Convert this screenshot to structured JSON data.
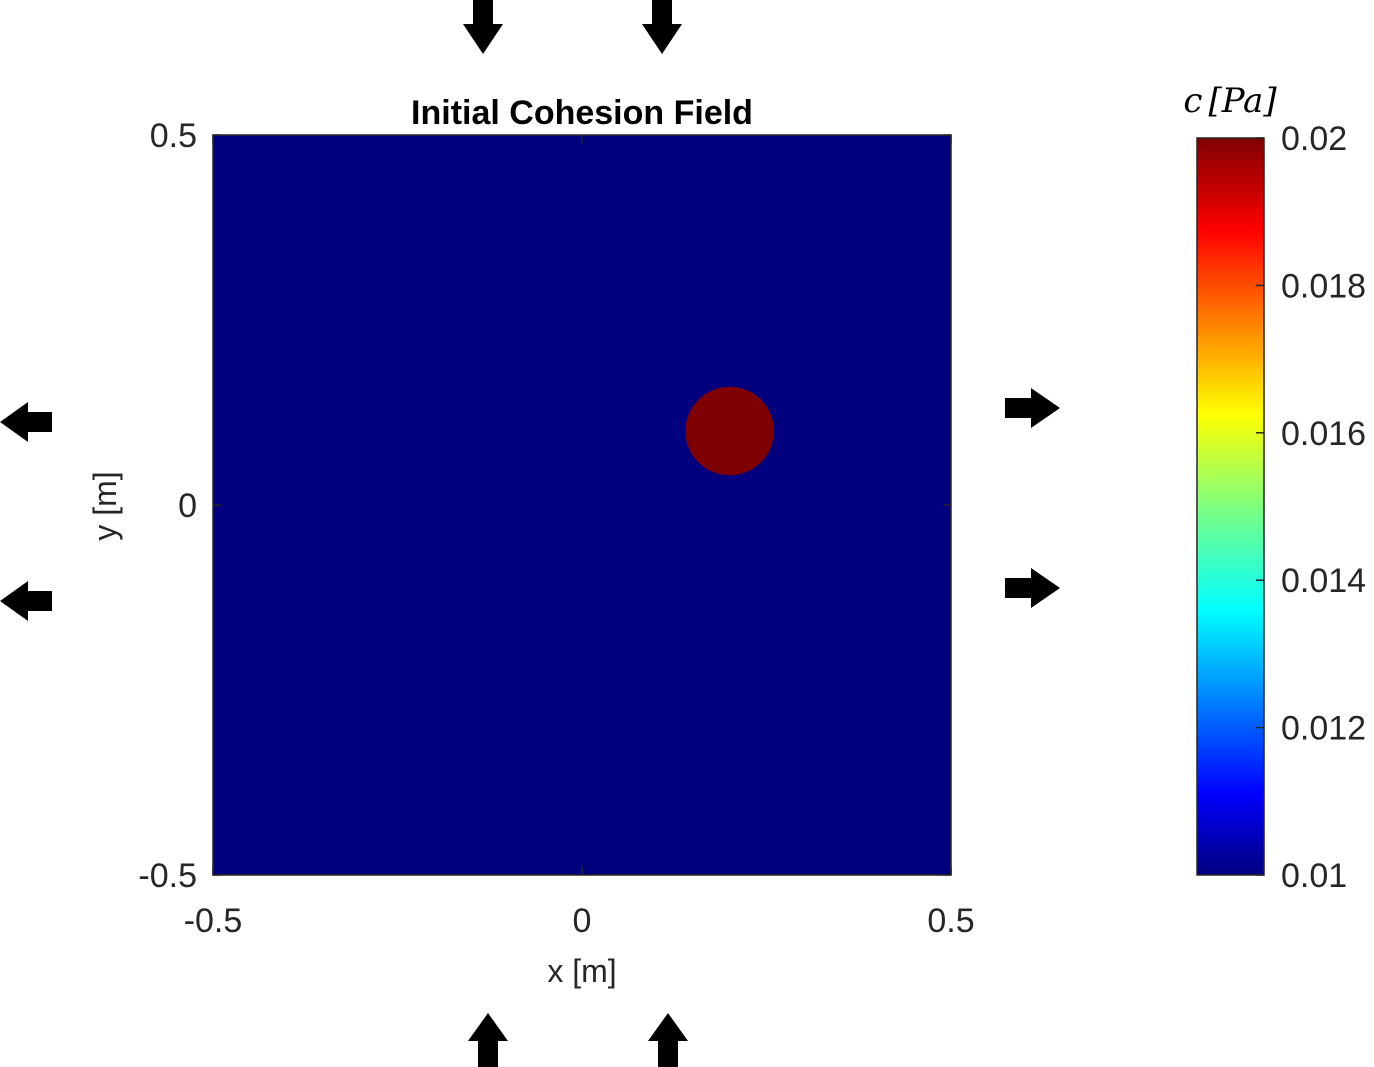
{
  "chart_data": {
    "type": "heatmap",
    "title": "Initial Cohesion Field",
    "xlabel": "x [m]",
    "ylabel": "y [m]",
    "xlim": [
      -0.5,
      0.5
    ],
    "ylim": [
      -0.5,
      0.5
    ],
    "x_ticks": [
      "-0.5",
      "0",
      "0.5"
    ],
    "y_ticks": [
      "0.5",
      "0",
      "-0.5"
    ],
    "x_tick_values": [
      -0.5,
      0,
      0.5
    ],
    "y_tick_values": [
      0.5,
      0,
      -0.5
    ],
    "background_value": 0.01,
    "inclusion": {
      "shape": "circle",
      "center_x": 0.2,
      "center_y": 0.1,
      "radius": 0.06,
      "value": 0.02
    },
    "colorbar": {
      "label": "c [Pa]",
      "label_symbol": "c",
      "label_unit": "[Pa]",
      "colormap": "jet",
      "limits": [
        0.01,
        0.02
      ],
      "ticks": [
        "0.02",
        "0.018",
        "0.016",
        "0.014",
        "0.012",
        "0.01"
      ],
      "tick_values": [
        0.02,
        0.018,
        0.016,
        0.014,
        0.012,
        0.01
      ]
    },
    "boundary_arrows": {
      "top": "inward",
      "bottom": "inward",
      "left": "outward",
      "right": "outward"
    },
    "colors": {
      "low": "#00007f",
      "high": "#7f0000",
      "arrow": "#000000"
    }
  }
}
